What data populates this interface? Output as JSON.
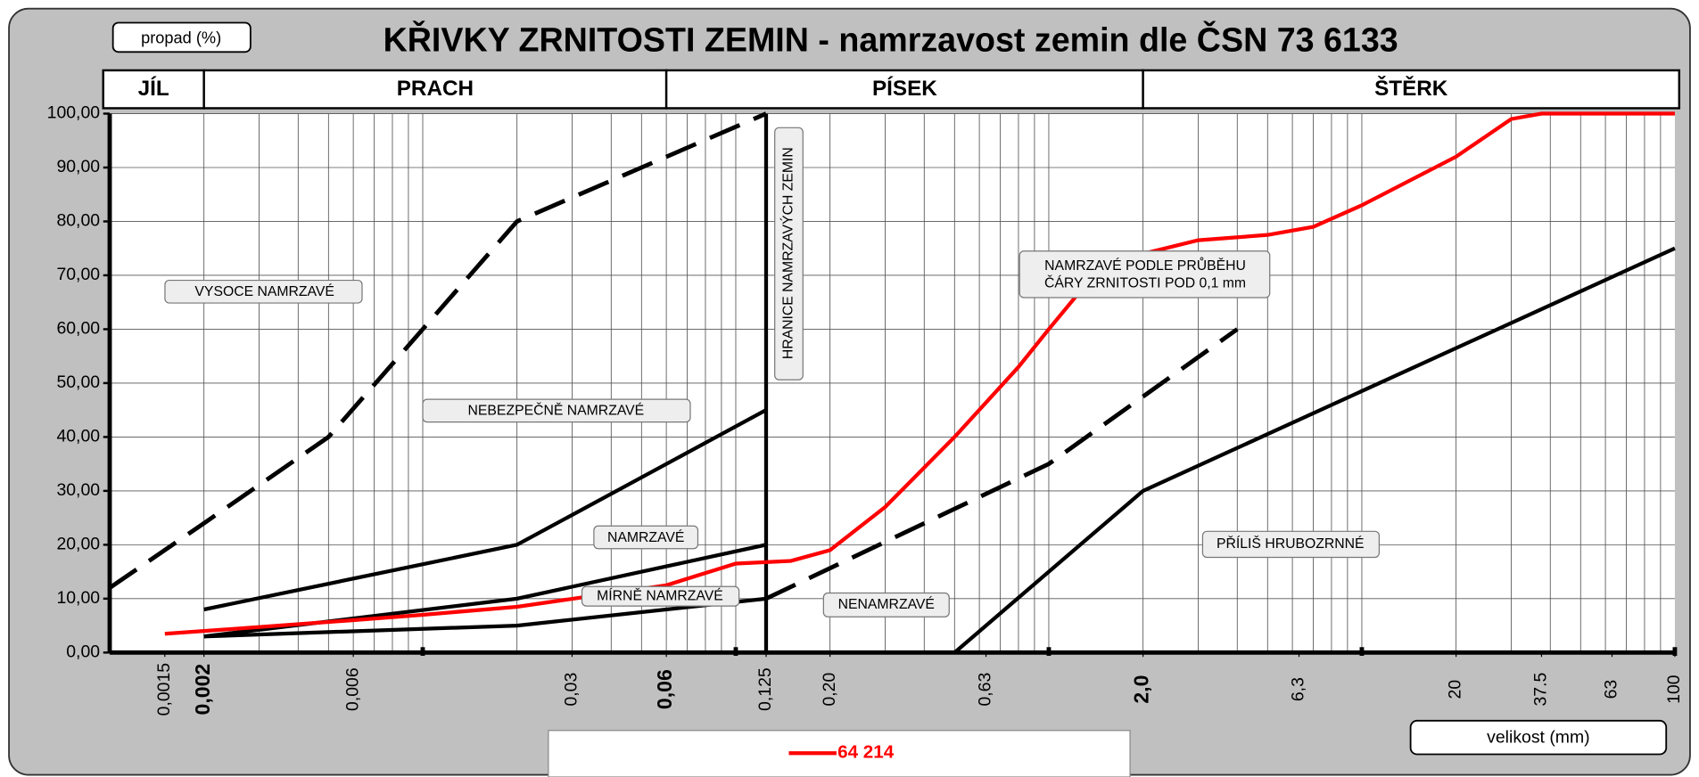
{
  "chart_data": {
    "type": "line",
    "title": "KŘIVKY   ZRNITOSTI   ZEMIN - namrzavost zemin dle ČSN 73 6133",
    "ylabel": "propad (%)",
    "xlabel": "velikost    (mm)",
    "xscale": "log",
    "grid": true,
    "xlim": [
      0.001,
      100
    ],
    "ylim": [
      0,
      100
    ],
    "yticks": [
      {
        "value": 0,
        "label": "0,00"
      },
      {
        "value": 10,
        "label": "10,00"
      },
      {
        "value": 20,
        "label": "20,00"
      },
      {
        "value": 30,
        "label": "30,00"
      },
      {
        "value": 40,
        "label": "40,00"
      },
      {
        "value": 50,
        "label": "50,00"
      },
      {
        "value": 60,
        "label": "60,00"
      },
      {
        "value": 70,
        "label": "70,00"
      },
      {
        "value": 80,
        "label": "80,00"
      },
      {
        "value": 90,
        "label": "90,00"
      },
      {
        "value": 100,
        "label": "100,00"
      }
    ],
    "xticks": [
      {
        "value": 0.0015,
        "label": "0,0015"
      },
      {
        "value": 0.002,
        "label": "0,002",
        "bold": true
      },
      {
        "value": 0.006,
        "label": "0,006"
      },
      {
        "value": 0.03,
        "label": "0,03"
      },
      {
        "value": 0.06,
        "label": "0,06",
        "bold": true
      },
      {
        "value": 0.125,
        "label": "0,125"
      },
      {
        "value": 0.2,
        "label": "0,20"
      },
      {
        "value": 0.63,
        "label": "0,63"
      },
      {
        "value": 2,
        "label": "2,0",
        "bold": true
      },
      {
        "value": 6.3,
        "label": "6,3"
      },
      20,
      37.5,
      63,
      100
    ],
    "x_decade_ticks": [
      0.01,
      0.1,
      1,
      10,
      100
    ],
    "soil_classes": [
      {
        "label": "JÍL",
        "from": 0.001,
        "to": 0.002
      },
      {
        "label": "PRACH",
        "from": 0.002,
        "to": 0.06
      },
      {
        "label": "PÍSEK",
        "from": 0.06,
        "to": 2
      },
      {
        "label": "ŠTĚRK",
        "from": 2,
        "to": 100
      }
    ],
    "boundaries": [
      {
        "dashed": true,
        "x": [
          0.001,
          0.002,
          0.005,
          0.01,
          0.02,
          0.125
        ],
        "values": [
          12,
          24,
          40,
          60,
          80,
          100
        ]
      },
      {
        "dashed": false,
        "x": [
          0.002,
          0.02,
          0.125
        ],
        "values": [
          8,
          20,
          45
        ]
      },
      {
        "dashed": false,
        "x": [
          0.002,
          0.02,
          0.125
        ],
        "values": [
          3,
          10,
          20
        ]
      },
      {
        "dashed": false,
        "x": [
          0.002,
          0.02,
          0.125
        ],
        "values": [
          3,
          5,
          10
        ]
      },
      {
        "dashed": true,
        "x": [
          0.125,
          1,
          4
        ],
        "values": [
          10,
          35,
          60
        ]
      },
      {
        "dashed": false,
        "x": [
          0.5,
          2,
          100
        ],
        "values": [
          0,
          30,
          75
        ]
      },
      {
        "dashed": false,
        "x": [
          0.125,
          0.125
        ],
        "values": [
          0,
          100
        ]
      }
    ],
    "series": [
      {
        "name": "64 214",
        "color": "#ff0000",
        "x": [
          0.0015,
          0.002,
          0.006,
          0.01,
          0.02,
          0.06,
          0.1,
          0.15,
          0.2,
          0.3,
          0.5,
          0.8,
          1.0,
          1.3,
          1.6,
          2,
          3,
          5,
          7,
          10,
          20,
          30,
          37.5,
          100
        ],
        "values": [
          3.5,
          4,
          6,
          7,
          8.5,
          12.5,
          16.5,
          17,
          19,
          27,
          40,
          53,
          60,
          68,
          72,
          74,
          76.5,
          77.5,
          79,
          83,
          92,
          99,
          100,
          100
        ]
      }
    ],
    "annotations": [
      "VYSOCE  NAMRZAVÉ",
      "NEBEZPEČNĚ  NAMRZAVÉ",
      "NAMRZAVÉ",
      "MÍRNĚ NAMRZAVÉ",
      "NENAMRZAVÉ",
      "NAMRZAVÉ  PODLE PRŮBĚHU",
      "ČÁRY  ZRNITOSTI  POD 0,1 mm",
      "PŘÍLIŠ  HRUBOZRNNÉ",
      "HRANICE NAMRZAVÝCH ZEMIN"
    ]
  }
}
